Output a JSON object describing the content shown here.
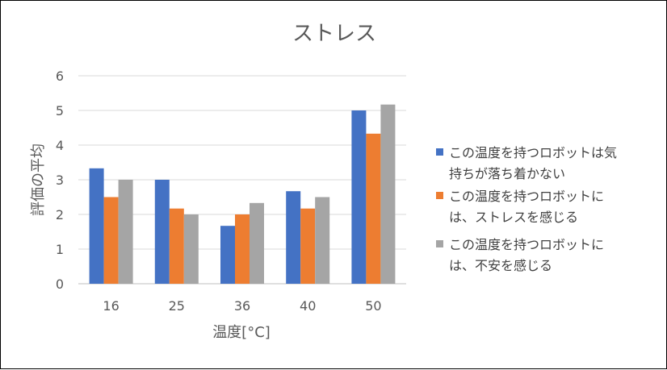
{
  "chart_data": {
    "type": "bar",
    "title": "ストレス",
    "xlabel": "温度[°C]",
    "ylabel": "評価の平均",
    "categories": [
      "16",
      "25",
      "36",
      "40",
      "50"
    ],
    "ylim": [
      0,
      6
    ],
    "yticks": [
      0,
      1,
      2,
      3,
      4,
      5,
      6
    ],
    "grid": true,
    "legend_position": "right",
    "series": [
      {
        "name": "この温度を持つロボットは気持ちが落ち着かない",
        "legend_lines": [
          "この温度を持つロボットは気",
          "持ちが落ち着かない"
        ],
        "color": "#4472C4",
        "values": [
          3.33,
          3.0,
          1.67,
          2.67,
          5.0
        ]
      },
      {
        "name": "この温度を持つロボットには、ストレスを感じる",
        "legend_lines": [
          "この温度を持つロボットに",
          "は、ストレスを感じる"
        ],
        "color": "#ED7D31",
        "values": [
          2.5,
          2.17,
          2.0,
          2.17,
          4.33
        ]
      },
      {
        "name": "この温度を持つロボットには、不安を感じる",
        "legend_lines": [
          "この温度を持つロボットに",
          "は、不安を感じる"
        ],
        "color": "#A5A5A5",
        "values": [
          3.0,
          2.0,
          2.33,
          2.5,
          5.17
        ]
      }
    ]
  }
}
